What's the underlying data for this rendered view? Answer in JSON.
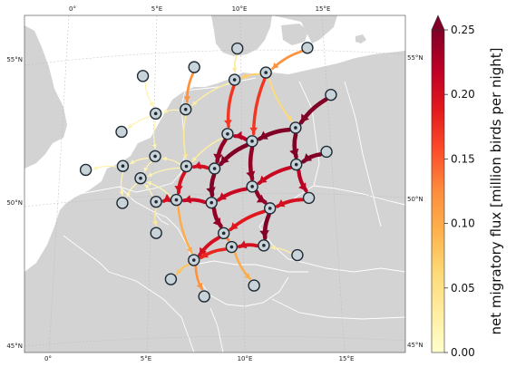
{
  "map": {
    "longitude_labels_top": [
      "0°",
      "5°E",
      "10°E",
      "15°E"
    ],
    "longitude_labels_bottom": [
      "0°",
      "5°E",
      "10°E",
      "15°E"
    ],
    "latitude_labels_left": [
      "55°N",
      "50°N",
      "45°N"
    ],
    "latitude_labels_right": [
      "55°N",
      "50°N",
      "45°N"
    ],
    "colors": {
      "land": "#d3d3d3",
      "sea": "#ffffff",
      "border": "#ffffff",
      "node_fill": "#c9d3da",
      "node_stroke": "#1f2a33",
      "node_dot": "#1f2a33"
    }
  },
  "colorbar": {
    "title": "net migratory flux [million birds per night]",
    "tick_labels": [
      "0.00",
      "0.05",
      "0.10",
      "0.15",
      "0.20",
      "0.25"
    ],
    "min": 0,
    "max": 0.25,
    "extend": "max",
    "colormap": "YlOrRd",
    "stops": [
      "#ffffcc",
      "#ffeda0",
      "#fed976",
      "#feb24c",
      "#fd8d3c",
      "#fc4e2a",
      "#e31a1c",
      "#bd0026",
      "#800026"
    ],
    "over_color": "#800026"
  },
  "chart_data": {
    "type": "flow-map",
    "nodes": [
      {
        "id": "ruegen",
        "type": "boundary",
        "lon": 14.6,
        "lat": 55.2
      },
      {
        "id": "sylt",
        "type": "boundary",
        "lon": 10.3,
        "lat": 55.3
      },
      {
        "id": "n-denmark-coast",
        "type": "boundary",
        "lon": 7.7,
        "lat": 54.7
      },
      {
        "id": "frisian",
        "type": "boundary",
        "lon": 4.6,
        "lat": 54.3
      },
      {
        "id": "n-germany-w",
        "type": "inner",
        "lon": 10.2,
        "lat": 54.2
      },
      {
        "id": "n-germany-e",
        "type": "inner",
        "lon": 12.1,
        "lat": 54.4
      },
      {
        "id": "poland-coast",
        "type": "boundary",
        "lon": 16.1,
        "lat": 53.5
      },
      {
        "id": "netherlands-n",
        "type": "inner",
        "lon": 5.5,
        "lat": 53.0
      },
      {
        "id": "ne-netherlands",
        "type": "inner",
        "lon": 7.3,
        "lat": 53.2
      },
      {
        "id": "belgium-coast",
        "type": "boundary",
        "lon": 3.5,
        "lat": 52.3
      },
      {
        "id": "hannover",
        "type": "inner",
        "lon": 9.9,
        "lat": 52.3
      },
      {
        "id": "berlin",
        "type": "inner",
        "lon": 11.4,
        "lat": 52.0
      },
      {
        "id": "brandenburg",
        "type": "inner",
        "lon": 14.0,
        "lat": 52.4
      },
      {
        "id": "netherlands-s",
        "type": "inner",
        "lon": 5.6,
        "lat": 51.5
      },
      {
        "id": "ruhr",
        "type": "inner",
        "lon": 7.5,
        "lat": 51.2
      },
      {
        "id": "kassel",
        "type": "inner",
        "lon": 9.2,
        "lat": 51.1
      },
      {
        "id": "poland-w",
        "type": "boundary",
        "lon": 15.9,
        "lat": 51.5
      },
      {
        "id": "lusatia",
        "type": "inner",
        "lon": 14.1,
        "lat": 51.1
      },
      {
        "id": "nw-france",
        "type": "boundary",
        "lon": 1.5,
        "lat": 50.9
      },
      {
        "id": "flanders",
        "type": "inner",
        "lon": 3.7,
        "lat": 51.1
      },
      {
        "id": "wallonia",
        "type": "inner",
        "lon": 4.8,
        "lat": 50.7
      },
      {
        "id": "thuringia",
        "type": "inner",
        "lon": 11.5,
        "lat": 50.4
      },
      {
        "id": "czech-n",
        "type": "boundary",
        "lon": 14.9,
        "lat": 49.9
      },
      {
        "id": "ardennes",
        "type": "inner",
        "lon": 5.8,
        "lat": 49.9
      },
      {
        "id": "rhineland",
        "type": "inner",
        "lon": 7.0,
        "lat": 50.0
      },
      {
        "id": "hesse",
        "type": "inner",
        "lon": 9.1,
        "lat": 49.9
      },
      {
        "id": "n-france-inland",
        "type": "boundary",
        "lon": 3.8,
        "lat": 49.8
      },
      {
        "id": "bavaria-n",
        "type": "inner",
        "lon": 12.6,
        "lat": 49.6
      },
      {
        "id": "lorraine",
        "type": "boundary",
        "lon": 5.9,
        "lat": 48.8
      },
      {
        "id": "wuerttemberg",
        "type": "inner",
        "lon": 9.9,
        "lat": 48.8
      },
      {
        "id": "alsace",
        "type": "inner",
        "lon": 8.2,
        "lat": 47.9
      },
      {
        "id": "allgaeu",
        "type": "inner",
        "lon": 10.4,
        "lat": 48.3
      },
      {
        "id": "upper-bavaria",
        "type": "inner",
        "lon": 12.3,
        "lat": 48.3
      },
      {
        "id": "austria",
        "type": "boundary",
        "lon": 14.3,
        "lat": 47.9
      },
      {
        "id": "burgundy",
        "type": "boundary",
        "lon": 6.9,
        "lat": 47.2
      },
      {
        "id": "switzerland",
        "type": "boundary",
        "lon": 8.9,
        "lat": 46.6
      },
      {
        "id": "tyrol",
        "type": "boundary",
        "lon": 11.8,
        "lat": 46.9
      }
    ],
    "edges": [
      {
        "from": "ruegen",
        "to": "n-germany-e",
        "flux": 0.12
      },
      {
        "from": "sylt",
        "to": "n-germany-w",
        "flux": 0.04
      },
      {
        "from": "n-denmark-coast",
        "to": "ne-netherlands",
        "flux": 0.12
      },
      {
        "from": "n-germany-e",
        "to": "n-germany-w",
        "flux": 0.07
      },
      {
        "from": "n-germany-w",
        "to": "hannover",
        "flux": 0.17
      },
      {
        "from": "n-germany-e",
        "to": "berlin",
        "flux": 0.17
      },
      {
        "from": "n-germany-e",
        "to": "brandenburg",
        "flux": 0.06
      },
      {
        "from": "poland-coast",
        "to": "brandenburg",
        "flux": 0.25
      },
      {
        "from": "brandenburg",
        "to": "berlin",
        "flux": 0.25
      },
      {
        "from": "brandenburg",
        "to": "lusatia",
        "flux": 0.25
      },
      {
        "from": "poland-w",
        "to": "lusatia",
        "flux": 0.25
      },
      {
        "from": "lusatia",
        "to": "czech-n",
        "flux": 0.22
      },
      {
        "from": "berlin",
        "to": "hannover",
        "flux": 0.22
      },
      {
        "from": "berlin",
        "to": "kassel",
        "flux": 0.25
      },
      {
        "from": "berlin",
        "to": "thuringia",
        "flux": 0.24
      },
      {
        "from": "hannover",
        "to": "kassel",
        "flux": 0.24
      },
      {
        "from": "kassel",
        "to": "ruhr",
        "flux": 0.2
      },
      {
        "from": "kassel",
        "to": "hesse",
        "flux": 0.25
      },
      {
        "from": "ruhr",
        "to": "rhineland",
        "flux": 0.2
      },
      {
        "from": "lusatia",
        "to": "thuringia",
        "flux": 0.21
      },
      {
        "from": "thuringia",
        "to": "hesse",
        "flux": 0.21
      },
      {
        "from": "thuringia",
        "to": "bavaria-n",
        "flux": 0.24
      },
      {
        "from": "czech-n",
        "to": "bavaria-n",
        "flux": 0.2
      },
      {
        "from": "hesse",
        "to": "rhineland",
        "flux": 0.21
      },
      {
        "from": "rhineland",
        "to": "ardennes",
        "flux": 0.2
      },
      {
        "from": "bavaria-n",
        "to": "upper-bavaria",
        "flux": 0.25
      },
      {
        "from": "bavaria-n",
        "to": "wuerttemberg",
        "flux": 0.19
      },
      {
        "from": "hesse",
        "to": "wuerttemberg",
        "flux": 0.24
      },
      {
        "from": "wuerttemberg",
        "to": "alsace",
        "flux": 0.2
      },
      {
        "from": "upper-bavaria",
        "to": "allgaeu",
        "flux": 0.2
      },
      {
        "from": "allgaeu",
        "to": "alsace",
        "flux": 0.18
      },
      {
        "from": "alsace",
        "to": "switzerland",
        "flux": 0.12
      },
      {
        "from": "alsace",
        "to": "burgundy",
        "flux": 0.08
      },
      {
        "from": "rhineland",
        "to": "alsace",
        "flux": 0.1
      },
      {
        "from": "hesse",
        "to": "allgaeu",
        "flux": 0.13
      },
      {
        "from": "allgaeu",
        "to": "tyrol",
        "flux": 0.1
      },
      {
        "from": "austria",
        "to": "upper-bavaria",
        "flux": 0.03
      },
      {
        "from": "netherlands-n",
        "to": "belgium-coast",
        "flux": 0.02
      },
      {
        "from": "frisian",
        "to": "netherlands-n",
        "flux": 0.02
      },
      {
        "from": "ne-netherlands",
        "to": "netherlands-n",
        "flux": 0.02
      },
      {
        "from": "ne-netherlands",
        "to": "ruhr",
        "flux": 0.04
      },
      {
        "from": "netherlands-n",
        "to": "netherlands-s",
        "flux": 0.02
      },
      {
        "from": "netherlands-s",
        "to": "flanders",
        "flux": 0.02
      },
      {
        "from": "flanders",
        "to": "nw-france",
        "flux": 0.02
      },
      {
        "from": "flanders",
        "to": "n-france-inland",
        "flux": 0.02
      },
      {
        "from": "wallonia",
        "to": "n-france-inland",
        "flux": 0.02
      },
      {
        "from": "ardennes",
        "to": "lorraine",
        "flux": 0.04
      },
      {
        "from": "ardennes",
        "to": "wallonia",
        "flux": 0.02
      },
      {
        "from": "n-germany-w",
        "to": "ne-netherlands",
        "flux": 0.03
      },
      {
        "from": "hannover",
        "to": "ruhr",
        "flux": 0.03
      },
      {
        "from": "ruhr",
        "to": "netherlands-s",
        "flux": 0.02
      },
      {
        "from": "netherlands-s",
        "to": "wallonia",
        "flux": 0.02
      },
      {
        "from": "rhineland",
        "to": "wallonia",
        "flux": 0.02
      },
      {
        "from": "ruhr",
        "to": "wallonia",
        "flux": 0.02
      }
    ]
  }
}
